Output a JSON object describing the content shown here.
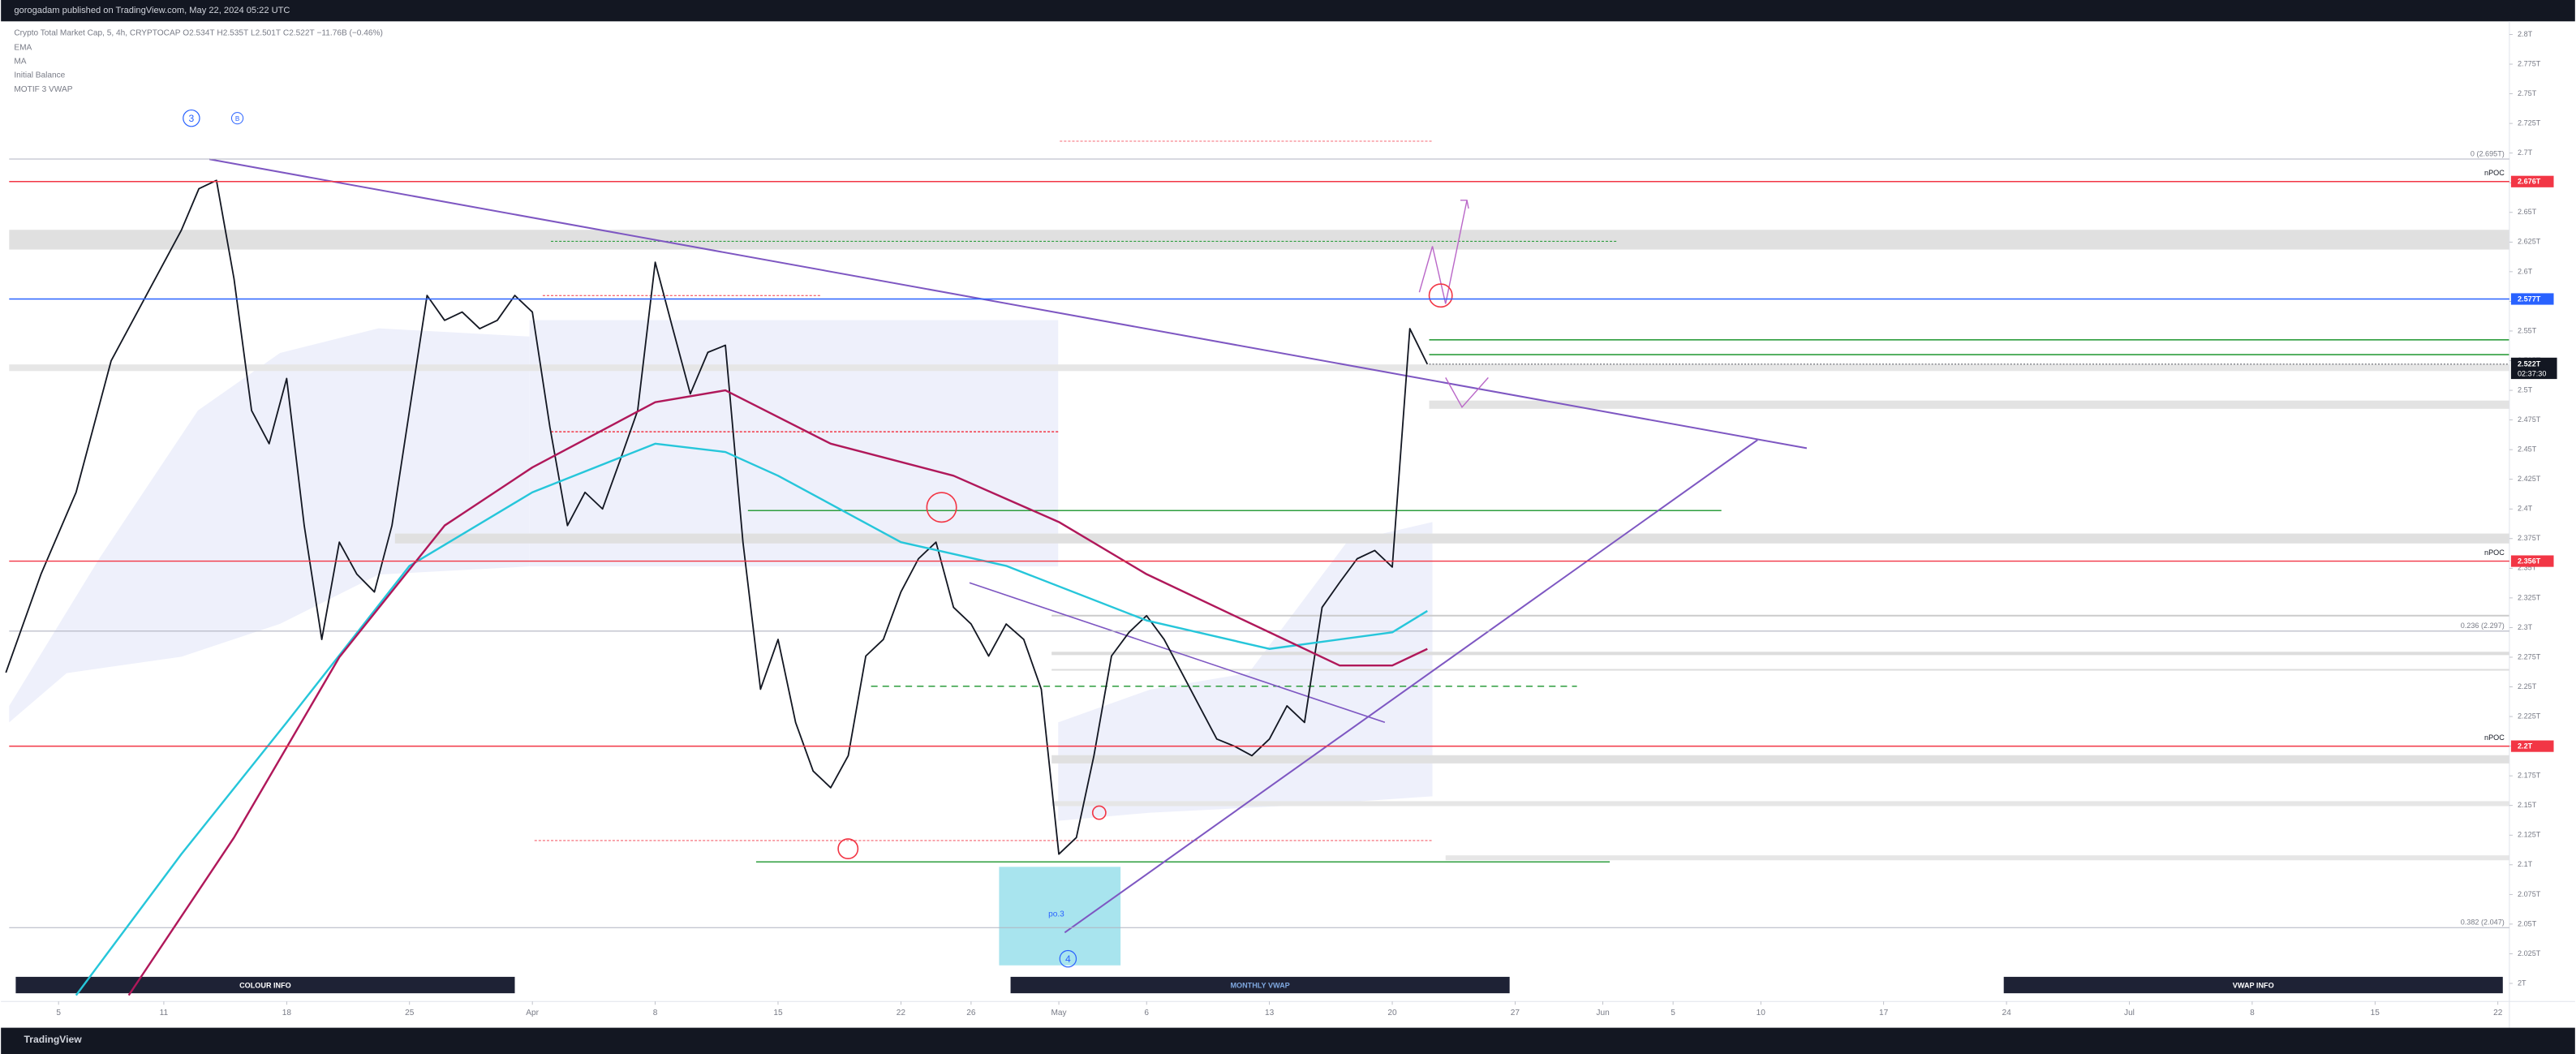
{
  "header": {
    "title": "gorogadam published on TradingView.com, May 22, 2024 05:22 UTC"
  },
  "legend": {
    "symbol": "Crypto Total Market Cap, 5, 4h, CRYPTOCAP",
    "open": "O2.534T",
    "high": "H2.535T",
    "low": "L2.501T",
    "close": "C2.522T",
    "change": "−11.76B (−0.46%)",
    "indicators": [
      "EMA",
      "MA",
      "Initial Balance",
      "MOTIF 3 VWAP"
    ]
  },
  "chart_data": {
    "type": "line",
    "xlim": [
      "2024-03-02",
      "2024-07-22"
    ],
    "ylim": [
      2,
      2.8
    ],
    "xticks": [
      {
        "value": "2024-03-05",
        "label": "5"
      },
      {
        "value": "2024-03-11",
        "label": "11"
      },
      {
        "value": "2024-03-18",
        "label": "18"
      },
      {
        "value": "2024-03-25",
        "label": "25"
      },
      {
        "value": "2024-04-01",
        "label": "Apr"
      },
      {
        "value": "2024-04-08",
        "label": "8"
      },
      {
        "value": "2024-04-15",
        "label": "15"
      },
      {
        "value": "2024-04-22",
        "label": "22"
      },
      {
        "value": "2024-04-26",
        "label": "26"
      },
      {
        "value": "2024-05-01",
        "label": "May"
      },
      {
        "value": "2024-05-06",
        "label": "6"
      },
      {
        "value": "2024-05-13",
        "label": "13"
      },
      {
        "value": "2024-05-20",
        "label": "20"
      },
      {
        "value": "2024-05-27",
        "label": "27"
      },
      {
        "value": "2024-06-01",
        "label": "Jun"
      },
      {
        "value": "2024-06-05",
        "label": "5"
      },
      {
        "value": "2024-06-10",
        "label": "10"
      },
      {
        "value": "2024-06-17",
        "label": "17"
      },
      {
        "value": "2024-06-24",
        "label": "24"
      },
      {
        "value": "2024-07-01",
        "label": "Jul"
      },
      {
        "value": "2024-07-08",
        "label": "8"
      },
      {
        "value": "2024-07-15",
        "label": "15"
      },
      {
        "value": "2024-07-22",
        "label": "22"
      }
    ],
    "yticks": [
      {
        "value": 2.8,
        "label": "2.8T"
      },
      {
        "value": 2.775,
        "label": "2.775T"
      },
      {
        "value": 2.75,
        "label": "2.75T"
      },
      {
        "value": 2.725,
        "label": "2.725T"
      },
      {
        "value": 2.7,
        "label": "2.7T"
      },
      {
        "value": 2.675,
        "label": "2.675T"
      },
      {
        "value": 2.65,
        "label": "2.65T"
      },
      {
        "value": 2.625,
        "label": "2.625T"
      },
      {
        "value": 2.6,
        "label": "2.6T"
      },
      {
        "value": 2.575,
        "label": "2.575T"
      },
      {
        "value": 2.55,
        "label": "2.55T"
      },
      {
        "value": 2.525,
        "label": "2.525T"
      },
      {
        "value": 2.5,
        "label": "2.5T"
      },
      {
        "value": 2.475,
        "label": "2.475T"
      },
      {
        "value": 2.45,
        "label": "2.45T"
      },
      {
        "value": 2.425,
        "label": "2.425T"
      },
      {
        "value": 2.4,
        "label": "2.4T"
      },
      {
        "value": 2.375,
        "label": "2.375T"
      },
      {
        "value": 2.35,
        "label": "2.35T"
      },
      {
        "value": 2.325,
        "label": "2.325T"
      },
      {
        "value": 2.3,
        "label": "2.3T"
      },
      {
        "value": 2.275,
        "label": "2.275T"
      },
      {
        "value": 2.25,
        "label": "2.25T"
      },
      {
        "value": 2.225,
        "label": "2.225T"
      },
      {
        "value": 2.2,
        "label": "2.2T"
      },
      {
        "value": 2.175,
        "label": "2.175T"
      },
      {
        "value": 2.15,
        "label": "2.15T"
      },
      {
        "value": 2.125,
        "label": "2.125T"
      },
      {
        "value": 2.1,
        "label": "2.1T"
      },
      {
        "value": 2.075,
        "label": "2.075T"
      },
      {
        "value": 2.05,
        "label": "2.05T"
      },
      {
        "value": 2.025,
        "label": "2.025T"
      },
      {
        "value": 2,
        "label": "2T"
      }
    ],
    "series": [
      {
        "color": "#131722",
        "x": [
          "2024-03-02",
          "2024-03-04",
          "2024-03-06",
          "2024-03-08",
          "2024-03-10",
          "2024-03-12",
          "2024-03-13",
          "2024-03-14",
          "2024-03-15",
          "2024-03-16",
          "2024-03-17",
          "2024-03-18",
          "2024-03-19",
          "2024-03-20",
          "2024-03-21",
          "2024-03-22",
          "2024-03-23",
          "2024-03-24",
          "2024-03-25",
          "2024-03-26",
          "2024-03-27",
          "2024-03-28",
          "2024-03-29",
          "2024-03-30",
          "2024-03-31",
          "2024-04-01",
          "2024-04-02",
          "2024-04-03",
          "2024-04-04",
          "2024-04-05",
          "2024-04-06",
          "2024-04-07",
          "2024-04-08",
          "2024-04-09",
          "2024-04-10",
          "2024-04-11",
          "2024-04-12",
          "2024-04-13",
          "2024-04-14",
          "2024-04-15",
          "2024-04-16",
          "2024-04-17",
          "2024-04-18",
          "2024-04-19",
          "2024-04-20",
          "2024-04-21",
          "2024-04-22",
          "2024-04-23",
          "2024-04-24",
          "2024-04-25",
          "2024-04-26",
          "2024-04-27",
          "2024-04-28",
          "2024-04-29",
          "2024-04-30",
          "2024-05-01",
          "2024-05-02",
          "2024-05-03",
          "2024-05-04",
          "2024-05-05",
          "2024-05-06",
          "2024-05-07",
          "2024-05-08",
          "2024-05-09",
          "2024-05-10",
          "2024-05-11",
          "2024-05-12",
          "2024-05-13",
          "2024-05-14",
          "2024-05-15",
          "2024-05-16",
          "2024-05-17",
          "2024-05-18",
          "2024-05-19",
          "2024-05-20",
          "2024-05-21",
          "2024-05-22"
        ],
        "values": [
          2.262,
          2.345,
          2.414,
          2.525,
          2.58,
          2.635,
          2.67,
          2.677,
          2.594,
          2.483,
          2.455,
          2.51,
          2.386,
          2.29,
          2.372,
          2.345,
          2.33,
          2.386,
          2.483,
          2.58,
          2.559,
          2.566,
          2.552,
          2.559,
          2.58,
          2.566,
          2.469,
          2.386,
          2.414,
          2.4,
          2.441,
          2.483,
          2.608,
          2.552,
          2.497,
          2.532,
          2.538,
          2.372,
          2.248,
          2.29,
          2.22,
          2.179,
          2.165,
          2.192,
          2.276,
          2.29,
          2.33,
          2.358,
          2.372,
          2.317,
          2.303,
          2.276,
          2.303,
          2.29,
          2.248,
          2.109,
          2.123,
          2.192,
          2.276,
          2.296,
          2.31,
          2.29,
          2.262,
          2.234,
          2.206,
          2.2,
          2.192,
          2.206,
          2.234,
          2.22,
          2.317,
          2.338,
          2.358,
          2.365,
          2.351,
          2.552,
          2.522
        ]
      },
      {
        "color": "#26c6da",
        "x": [
          "2024-03-06",
          "2024-03-12",
          "2024-03-18",
          "2024-03-25",
          "2024-04-01",
          "2024-04-08",
          "2024-04-12",
          "2024-04-15",
          "2024-04-22",
          "2024-04-28",
          "2024-05-06",
          "2024-05-13",
          "2024-05-20",
          "2024-05-22"
        ],
        "values": [
          1.99,
          2.109,
          2.22,
          2.352,
          2.414,
          2.455,
          2.448,
          2.428,
          2.372,
          2.352,
          2.306,
          2.282,
          2.296,
          2.314
        ]
      },
      {
        "color": "#b0185a",
        "x": [
          "2024-03-09",
          "2024-03-15",
          "2024-03-21",
          "2024-03-27",
          "2024-04-01",
          "2024-04-08",
          "2024-04-12",
          "2024-04-18",
          "2024-04-25",
          "2024-05-01",
          "2024-05-06",
          "2024-05-13",
          "2024-05-17",
          "2024-05-20",
          "2024-05-22"
        ],
        "values": [
          1.99,
          2.123,
          2.275,
          2.386,
          2.435,
          2.49,
          2.5,
          2.455,
          2.428,
          2.389,
          2.345,
          2.296,
          2.268,
          2.268,
          2.282
        ]
      }
    ],
    "levels": [
      {
        "value": 2.676,
        "label": "2.676T",
        "note": "nPOC",
        "color": "#f23645"
      },
      {
        "value": 2.577,
        "label": "2.577T",
        "color": "#2962ff"
      },
      {
        "value": 2.356,
        "label": "2.356T",
        "note": "nPOC",
        "color": "#f23645"
      },
      {
        "value": 2.2,
        "label": "2.2T",
        "note": "nPOC",
        "color": "#f23645"
      }
    ],
    "last_price": {
      "value": 2.522,
      "label": "2.522T",
      "countdown": "02:37:30",
      "color": "#131722"
    },
    "fib": [
      {
        "value": 2.695,
        "label": "0 (2.695T)"
      },
      {
        "value": 2.297,
        "label": "0.236 (2.297)"
      },
      {
        "value": 2.047,
        "label": "0.382 (2.047)"
      }
    ],
    "annotations": {
      "wave3": "3",
      "waveB": "B",
      "wave4": "4",
      "po3": "po.3"
    },
    "panels": [
      "COLOUR INFO",
      "MONTHLY VWAP",
      "VWAP INFO"
    ]
  },
  "footer": {
    "brand": "TradingView"
  }
}
